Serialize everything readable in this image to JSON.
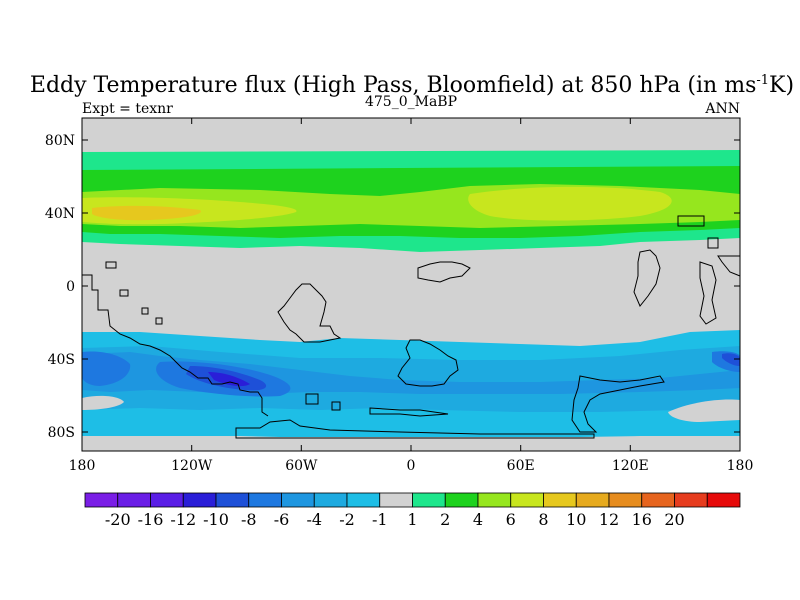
{
  "title": {
    "main": "Eddy Temperature flux (High Pass, Bloomfield) at 850 hPa (in ms",
    "sup": "-1",
    "end": "K)"
  },
  "expt_label": "Expt = texnr",
  "subtitle": "475_0_MaBP",
  "season": "ANN",
  "lat_ticks": [
    "80N",
    "40N",
    "0",
    "40S",
    "80S"
  ],
  "lon_ticks": [
    "180",
    "120W",
    "60W",
    "0",
    "60E",
    "120E",
    "180"
  ],
  "colorbar": {
    "colors": [
      "#7a1ee6",
      "#6a1ee6",
      "#5a1ee6",
      "#2a1ed8",
      "#1e50d8",
      "#1e78e0",
      "#1e96e0",
      "#1eaae0",
      "#1ebee6",
      "#d2d2d2",
      "#1ee68c",
      "#1ed21e",
      "#96e61e",
      "#c8e61e",
      "#e6c81e",
      "#e6aa1e",
      "#e68c1e",
      "#e6641e",
      "#e63c1e",
      "#e60a0a"
    ],
    "labels": [
      "-20",
      "-16",
      "-12",
      "-10",
      "-8",
      "-6",
      "-4",
      "-2",
      "-1",
      "1",
      "2",
      "4",
      "6",
      "8",
      "10",
      "12",
      "16",
      "20"
    ]
  },
  "field_colors": {
    "background": "#d2d2d2",
    "c_neg1": "#1ebee6",
    "c_neg2": "#1eaae0",
    "c_neg3": "#1e96e0",
    "c_neg4": "#1e78e0",
    "c_neg5": "#1e50d8",
    "c_neg6": "#2a1ed8",
    "c_pos1": "#1ee68c",
    "c_pos2": "#1ed21e",
    "c_pos3": "#96e61e",
    "c_pos4": "#c8e61e",
    "c_pos5": "#e6c81e"
  }
}
